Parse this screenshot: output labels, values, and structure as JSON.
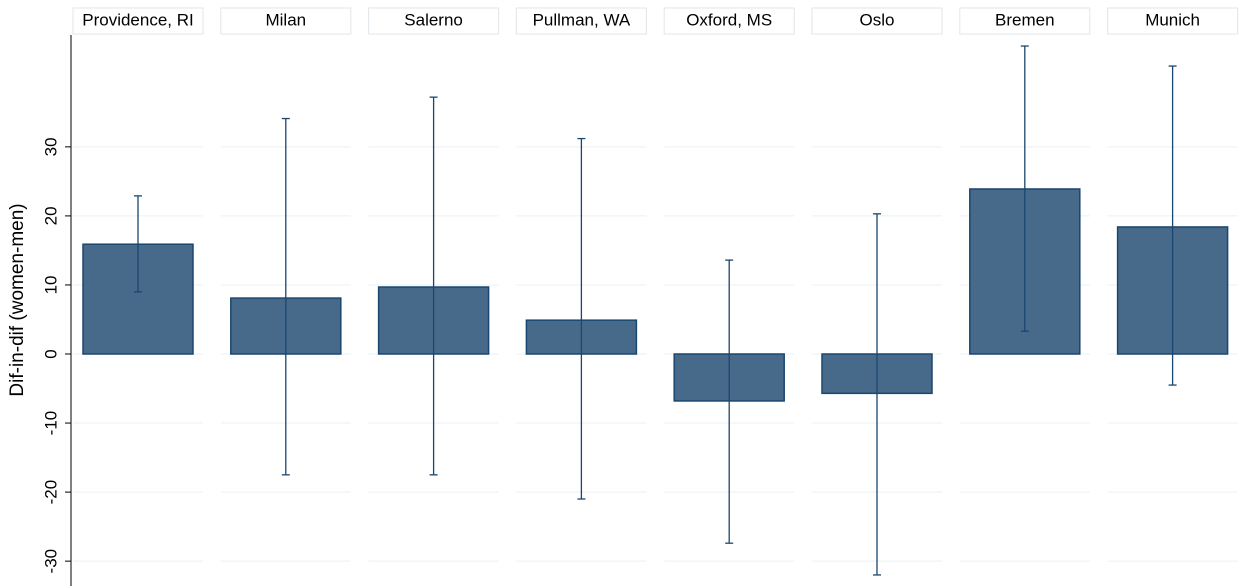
{
  "chart_data": {
    "type": "bar",
    "y_label": "Dif-in-dif (women-men)",
    "categories": [
      "Providence, RI",
      "Milan",
      "Salerno",
      "Pullman, WA",
      "Oxford, MS",
      "Oslo",
      "Bremen",
      "Munich"
    ],
    "values": [
      15.9,
      8.1,
      9.7,
      4.9,
      -6.8,
      -5.7,
      23.9,
      18.4
    ],
    "ci_low": [
      9.0,
      -17.5,
      -17.5,
      -21.0,
      -27.4,
      -32.0,
      3.3,
      -4.5
    ],
    "ci_high": [
      22.9,
      34.1,
      37.2,
      31.2,
      13.6,
      20.3,
      44.6,
      41.7
    ],
    "color": "#476a8a",
    "edge_color": "#1a476f",
    "ylim": [
      -33.6,
      46.2
    ],
    "yticks": [
      -30,
      -20,
      -10,
      0,
      10,
      20,
      30
    ],
    "grid": true
  }
}
